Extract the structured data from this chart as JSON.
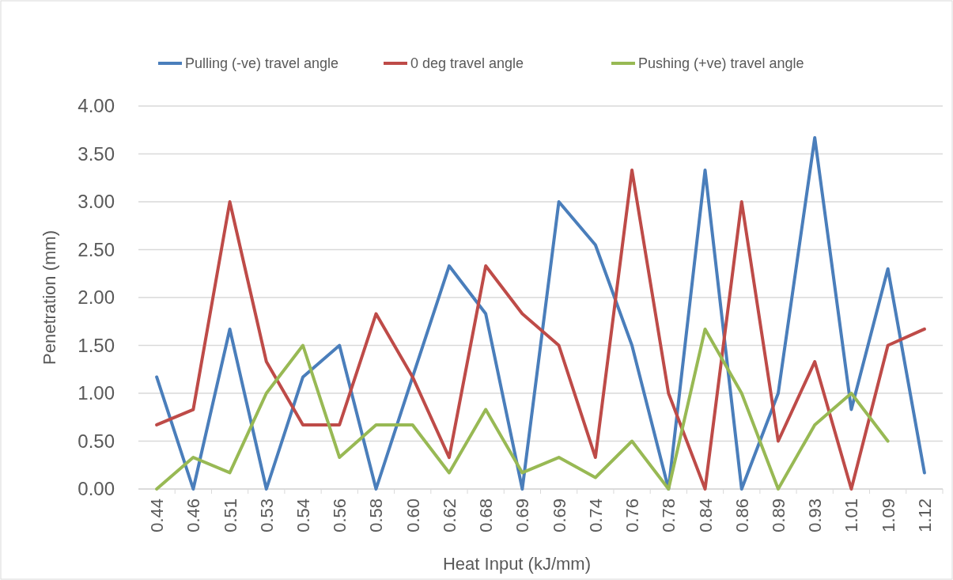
{
  "chart_data": {
    "type": "line",
    "xlabel": "Heat Input (kJ/mm)",
    "ylabel": "Penetration (mm)",
    "categories": [
      "0.44",
      "0.46",
      "0.51",
      "0.53",
      "0.54",
      "0.56",
      "0.58",
      "0.60",
      "0.62",
      "0.68",
      "0.69",
      "0.69",
      "0.74",
      "0.76",
      "0.78",
      "0.84",
      "0.86",
      "0.89",
      "0.93",
      "1.01",
      "1.09",
      "1.12"
    ],
    "series": [
      {
        "name": "Pulling (-ve) travel angle",
        "color": "#4a7ebb",
        "values": [
          1.17,
          0,
          1.67,
          0,
          1.17,
          1.5,
          0,
          1.17,
          2.33,
          1.83,
          0,
          3.0,
          2.55,
          1.5,
          0,
          3.33,
          0,
          1.0,
          3.67,
          0.83,
          2.3,
          0.17
        ]
      },
      {
        "name": "0 deg travel angle",
        "color": "#be4b48",
        "values": [
          0.67,
          0.83,
          3.0,
          1.33,
          0.67,
          0.67,
          1.83,
          1.17,
          0.33,
          2.33,
          1.83,
          1.5,
          0.33,
          3.33,
          1.0,
          0,
          3.0,
          0.5,
          1.33,
          0,
          1.5,
          1.67
        ]
      },
      {
        "name": "Pushing (+ve) travel angle",
        "color": "#98b954",
        "values": [
          0,
          0.33,
          0.17,
          1.0,
          1.5,
          0.33,
          0.67,
          0.67,
          0.17,
          0.83,
          0.17,
          0.33,
          0.12,
          0.5,
          0,
          1.67,
          1.0,
          0,
          0.67,
          1.0,
          0.5,
          null
        ]
      }
    ],
    "ylim": [
      0,
      4
    ],
    "yticks": [
      {
        "value": 0,
        "label": "0.00"
      },
      {
        "value": 0.5,
        "label": "0.50"
      },
      {
        "value": 1,
        "label": "1.00"
      },
      {
        "value": 1.5,
        "label": "1.50"
      },
      {
        "value": 2,
        "label": "2.00"
      },
      {
        "value": 2.5,
        "label": "2.50"
      },
      {
        "value": 3,
        "label": "3.00"
      },
      {
        "value": 3.5,
        "label": "3.50"
      },
      {
        "value": 4,
        "label": "4.00"
      }
    ],
    "grid": "y",
    "legend": "top",
    "marker": "none",
    "line_style": "solid"
  }
}
